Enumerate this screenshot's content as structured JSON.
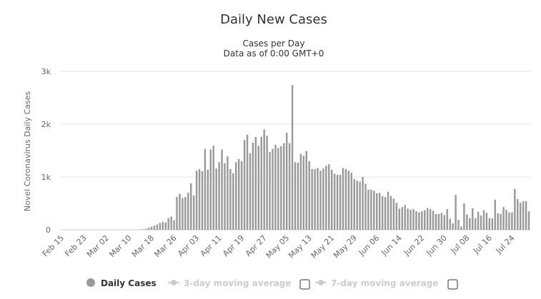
{
  "chart_data": {
    "type": "bar",
    "title": "Daily New Cases",
    "subtitle_line1": "Cases per Day",
    "subtitle_line2": "Data as of 0:00 GMT+0",
    "ylabel": "Novel Coronavirus Daily Cases",
    "xlabel": "",
    "ylim": [
      0,
      3000
    ],
    "y_ticks": [
      0,
      1000,
      2000,
      3000
    ],
    "y_tick_labels": [
      "0",
      "1k",
      "2k",
      "3k"
    ],
    "x_tick_labels": [
      "Feb 15",
      "Feb 23",
      "Mar 02",
      "Mar 10",
      "Mar 18",
      "Mar 26",
      "Apr 03",
      "Apr 11",
      "Apr 19",
      "Apr 27",
      "May 05",
      "May 13",
      "May 21",
      "May 29",
      "Jun 06",
      "Jun 14",
      "Jun 22",
      "Jun 30",
      "Jul 08",
      "Jul 16",
      "Jul 24"
    ],
    "x_tick_every_days": 8,
    "grid": true,
    "bar_color": "#999999",
    "series": [
      {
        "name": "Daily Cases",
        "start": "Feb 15",
        "values": [
          0,
          0,
          0,
          0,
          0,
          0,
          0,
          0,
          0,
          0,
          0,
          0,
          0,
          0,
          0,
          0,
          0,
          0,
          0,
          0,
          0,
          0,
          0,
          0,
          0,
          0,
          0,
          0,
          5,
          10,
          20,
          40,
          60,
          80,
          100,
          130,
          150,
          140,
          220,
          250,
          180,
          620,
          680,
          600,
          620,
          700,
          880,
          650,
          1120,
          1150,
          1110,
          1530,
          1140,
          1520,
          1590,
          1160,
          1280,
          1520,
          1260,
          1390,
          1150,
          1070,
          1280,
          1340,
          1300,
          1700,
          1800,
          1450,
          1650,
          1760,
          1590,
          1760,
          1900,
          1780,
          1470,
          1530,
          1610,
          1550,
          1580,
          1640,
          1840,
          1640,
          2740,
          1280,
          1270,
          1440,
          1400,
          1490,
          1300,
          1150,
          1150,
          1170,
          1120,
          1160,
          1210,
          1240,
          1140,
          1060,
          1040,
          1040,
          1170,
          1150,
          1120,
          1080,
          960,
          930,
          910,
          1000,
          870,
          760,
          760,
          740,
          690,
          700,
          640,
          620,
          720,
          640,
          590,
          510,
          400,
          430,
          470,
          400,
          380,
          390,
          350,
          330,
          350,
          370,
          410,
          390,
          360,
          300,
          300,
          320,
          280,
          390,
          210,
          120,
          660,
          190,
          60,
          500,
          290,
          220,
          410,
          220,
          340,
          270,
          370,
          320,
          220,
          220,
          570,
          310,
          300,
          430,
          380,
          330,
          330,
          770,
          580,
          510,
          540,
          540,
          350
        ]
      }
    ],
    "legend": {
      "position": "bottom",
      "items": [
        {
          "label": "Daily Cases",
          "active": true
        },
        {
          "label": "3-day moving average",
          "active": false
        },
        {
          "label": "7-day moving average",
          "active": false
        }
      ]
    },
    "colors": {
      "text": "#333333",
      "legend_active": "#333333",
      "legend_inactive": "#cccccc",
      "bar": "#999999",
      "grid": "#e6e6e6"
    }
  }
}
